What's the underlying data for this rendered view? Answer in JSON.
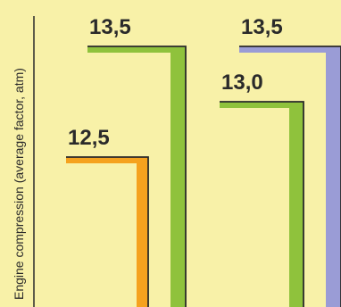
{
  "chart_data": {
    "type": "bar",
    "ylabel": "Engine compression (average factor, atm)",
    "value_labels": [
      "12,5",
      "13,5",
      "13,0",
      "13,5"
    ],
    "values": [
      12.5,
      13.5,
      13.0,
      13.5
    ],
    "colors": {
      "background": "#f8f1a8",
      "bar_1": "#f5a21e",
      "bar_2": "#8fc23c",
      "bar_3": "#8fc23c",
      "bar_4": "#9a9cd6",
      "outline": "#2a2a2a"
    },
    "grid": false,
    "legend": "none"
  }
}
